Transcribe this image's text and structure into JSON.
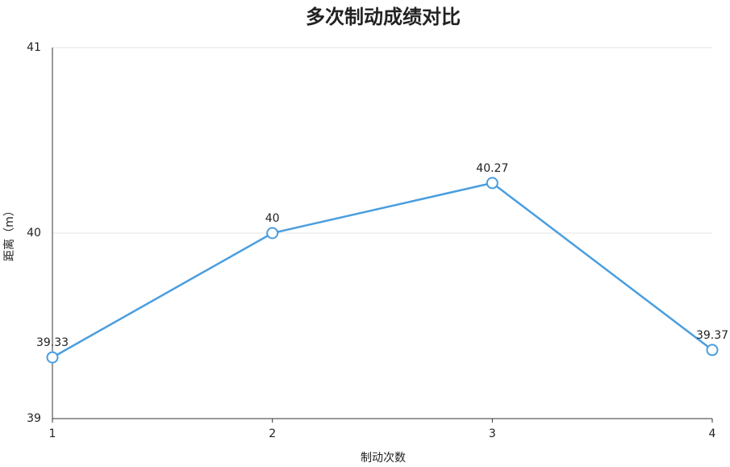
{
  "chart_data": {
    "type": "line",
    "title": "多次制动成绩对比",
    "x_label": "制动次数",
    "y_label": "距离（m）",
    "x": [
      1,
      2,
      3,
      4
    ],
    "values": [
      39.33,
      40,
      40.27,
      39.37
    ],
    "color": "#4a9ede",
    "xlim": [
      1,
      4
    ],
    "xticks": [
      1,
      2,
      3,
      4
    ],
    "ylim": [
      39,
      41
    ],
    "yticks": [
      39,
      40,
      41
    ],
    "grid": true
  }
}
